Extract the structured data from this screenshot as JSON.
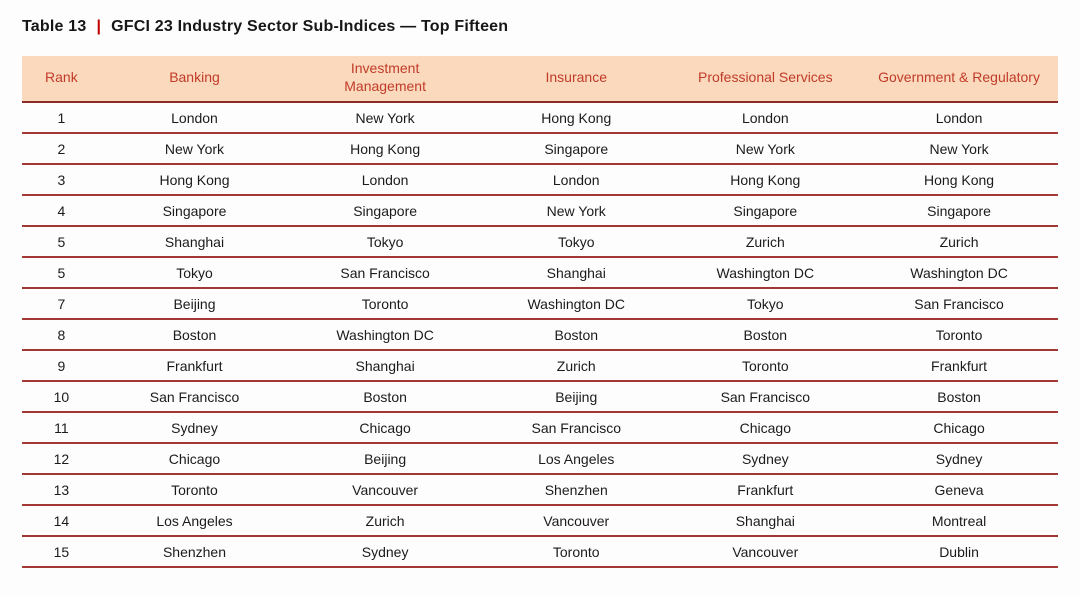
{
  "title": {
    "label": "Table 13",
    "divider": "|",
    "text": "GFCI 23 Industry Sector Sub-Indices — Top Fifteen"
  },
  "table": {
    "columns": [
      "Rank",
      "Banking",
      "Investment Management",
      "Insurance",
      "Professional Services",
      "Government & Regulatory"
    ],
    "rows": [
      {
        "rank": "1",
        "banking": "London",
        "investment_management": "New York",
        "insurance": "Hong Kong",
        "professional_services": "London",
        "government_regulatory": "London"
      },
      {
        "rank": "2",
        "banking": "New York",
        "investment_management": "Hong Kong",
        "insurance": "Singapore",
        "professional_services": "New York",
        "government_regulatory": "New York"
      },
      {
        "rank": "3",
        "banking": "Hong Kong",
        "investment_management": "London",
        "insurance": "London",
        "professional_services": "Hong Kong",
        "government_regulatory": "Hong Kong"
      },
      {
        "rank": "4",
        "banking": "Singapore",
        "investment_management": "Singapore",
        "insurance": "New York",
        "professional_services": "Singapore",
        "government_regulatory": "Singapore"
      },
      {
        "rank": "5",
        "banking": "Shanghai",
        "investment_management": "Tokyo",
        "insurance": "Tokyo",
        "professional_services": "Zurich",
        "government_regulatory": "Zurich"
      },
      {
        "rank": "5",
        "banking": "Tokyo",
        "investment_management": "San Francisco",
        "insurance": "Shanghai",
        "professional_services": "Washington DC",
        "government_regulatory": "Washington DC"
      },
      {
        "rank": "7",
        "banking": "Beijing",
        "investment_management": "Toronto",
        "insurance": "Washington DC",
        "professional_services": "Tokyo",
        "government_regulatory": "San Francisco"
      },
      {
        "rank": "8",
        "banking": "Boston",
        "investment_management": "Washington DC",
        "insurance": "Boston",
        "professional_services": "Boston",
        "government_regulatory": "Toronto"
      },
      {
        "rank": "9",
        "banking": "Frankfurt",
        "investment_management": "Shanghai",
        "insurance": "Zurich",
        "professional_services": "Toronto",
        "government_regulatory": "Frankfurt"
      },
      {
        "rank": "10",
        "banking": "San Francisco",
        "investment_management": "Boston",
        "insurance": "Beijing",
        "professional_services": "San Francisco",
        "government_regulatory": "Boston"
      },
      {
        "rank": "11",
        "banking": "Sydney",
        "investment_management": "Chicago",
        "insurance": "San Francisco",
        "professional_services": "Chicago",
        "government_regulatory": "Chicago"
      },
      {
        "rank": "12",
        "banking": "Chicago",
        "investment_management": "Beijing",
        "insurance": "Los Angeles",
        "professional_services": "Sydney",
        "government_regulatory": "Sydney"
      },
      {
        "rank": "13",
        "banking": "Toronto",
        "investment_management": "Vancouver",
        "insurance": "Shenzhen",
        "professional_services": "Frankfurt",
        "government_regulatory": "Geneva"
      },
      {
        "rank": "14",
        "banking": "Los Angeles",
        "investment_management": "Zurich",
        "insurance": "Vancouver",
        "professional_services": "Shanghai",
        "government_regulatory": "Montreal"
      },
      {
        "rank": "15",
        "banking": "Shenzhen",
        "investment_management": "Sydney",
        "insurance": "Toronto",
        "professional_services": "Vancouver",
        "government_regulatory": "Dublin"
      }
    ]
  },
  "colors": {
    "header_background": "#fbd9bc",
    "header_text": "#c13b2a",
    "row_rule": "#a23733",
    "title_divider": "#c00000",
    "title_text": "#161616",
    "body_text": "#1b1b1b",
    "page_background": "#fdfdfd"
  }
}
